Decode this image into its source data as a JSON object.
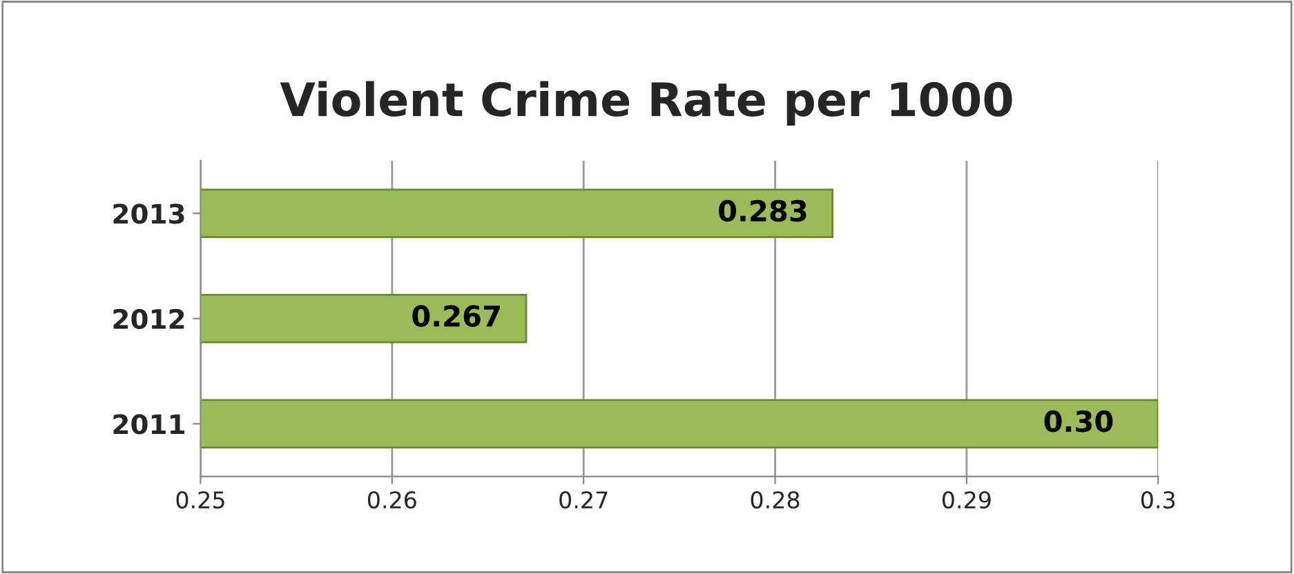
{
  "chart_data": {
    "type": "bar",
    "orientation": "horizontal",
    "title": "Violent Crime Rate per 1000",
    "categories": [
      "2013",
      "2012",
      "2011"
    ],
    "values": [
      0.283,
      0.267,
      0.3
    ],
    "color": "#9bbb59",
    "value_labels": [
      "0.283",
      "0.267",
      "0.30"
    ],
    "xlim": [
      0.25,
      0.3
    ],
    "xticks": [
      0.25,
      0.26,
      0.27,
      0.28,
      0.29,
      0.3
    ],
    "grid": "x"
  }
}
